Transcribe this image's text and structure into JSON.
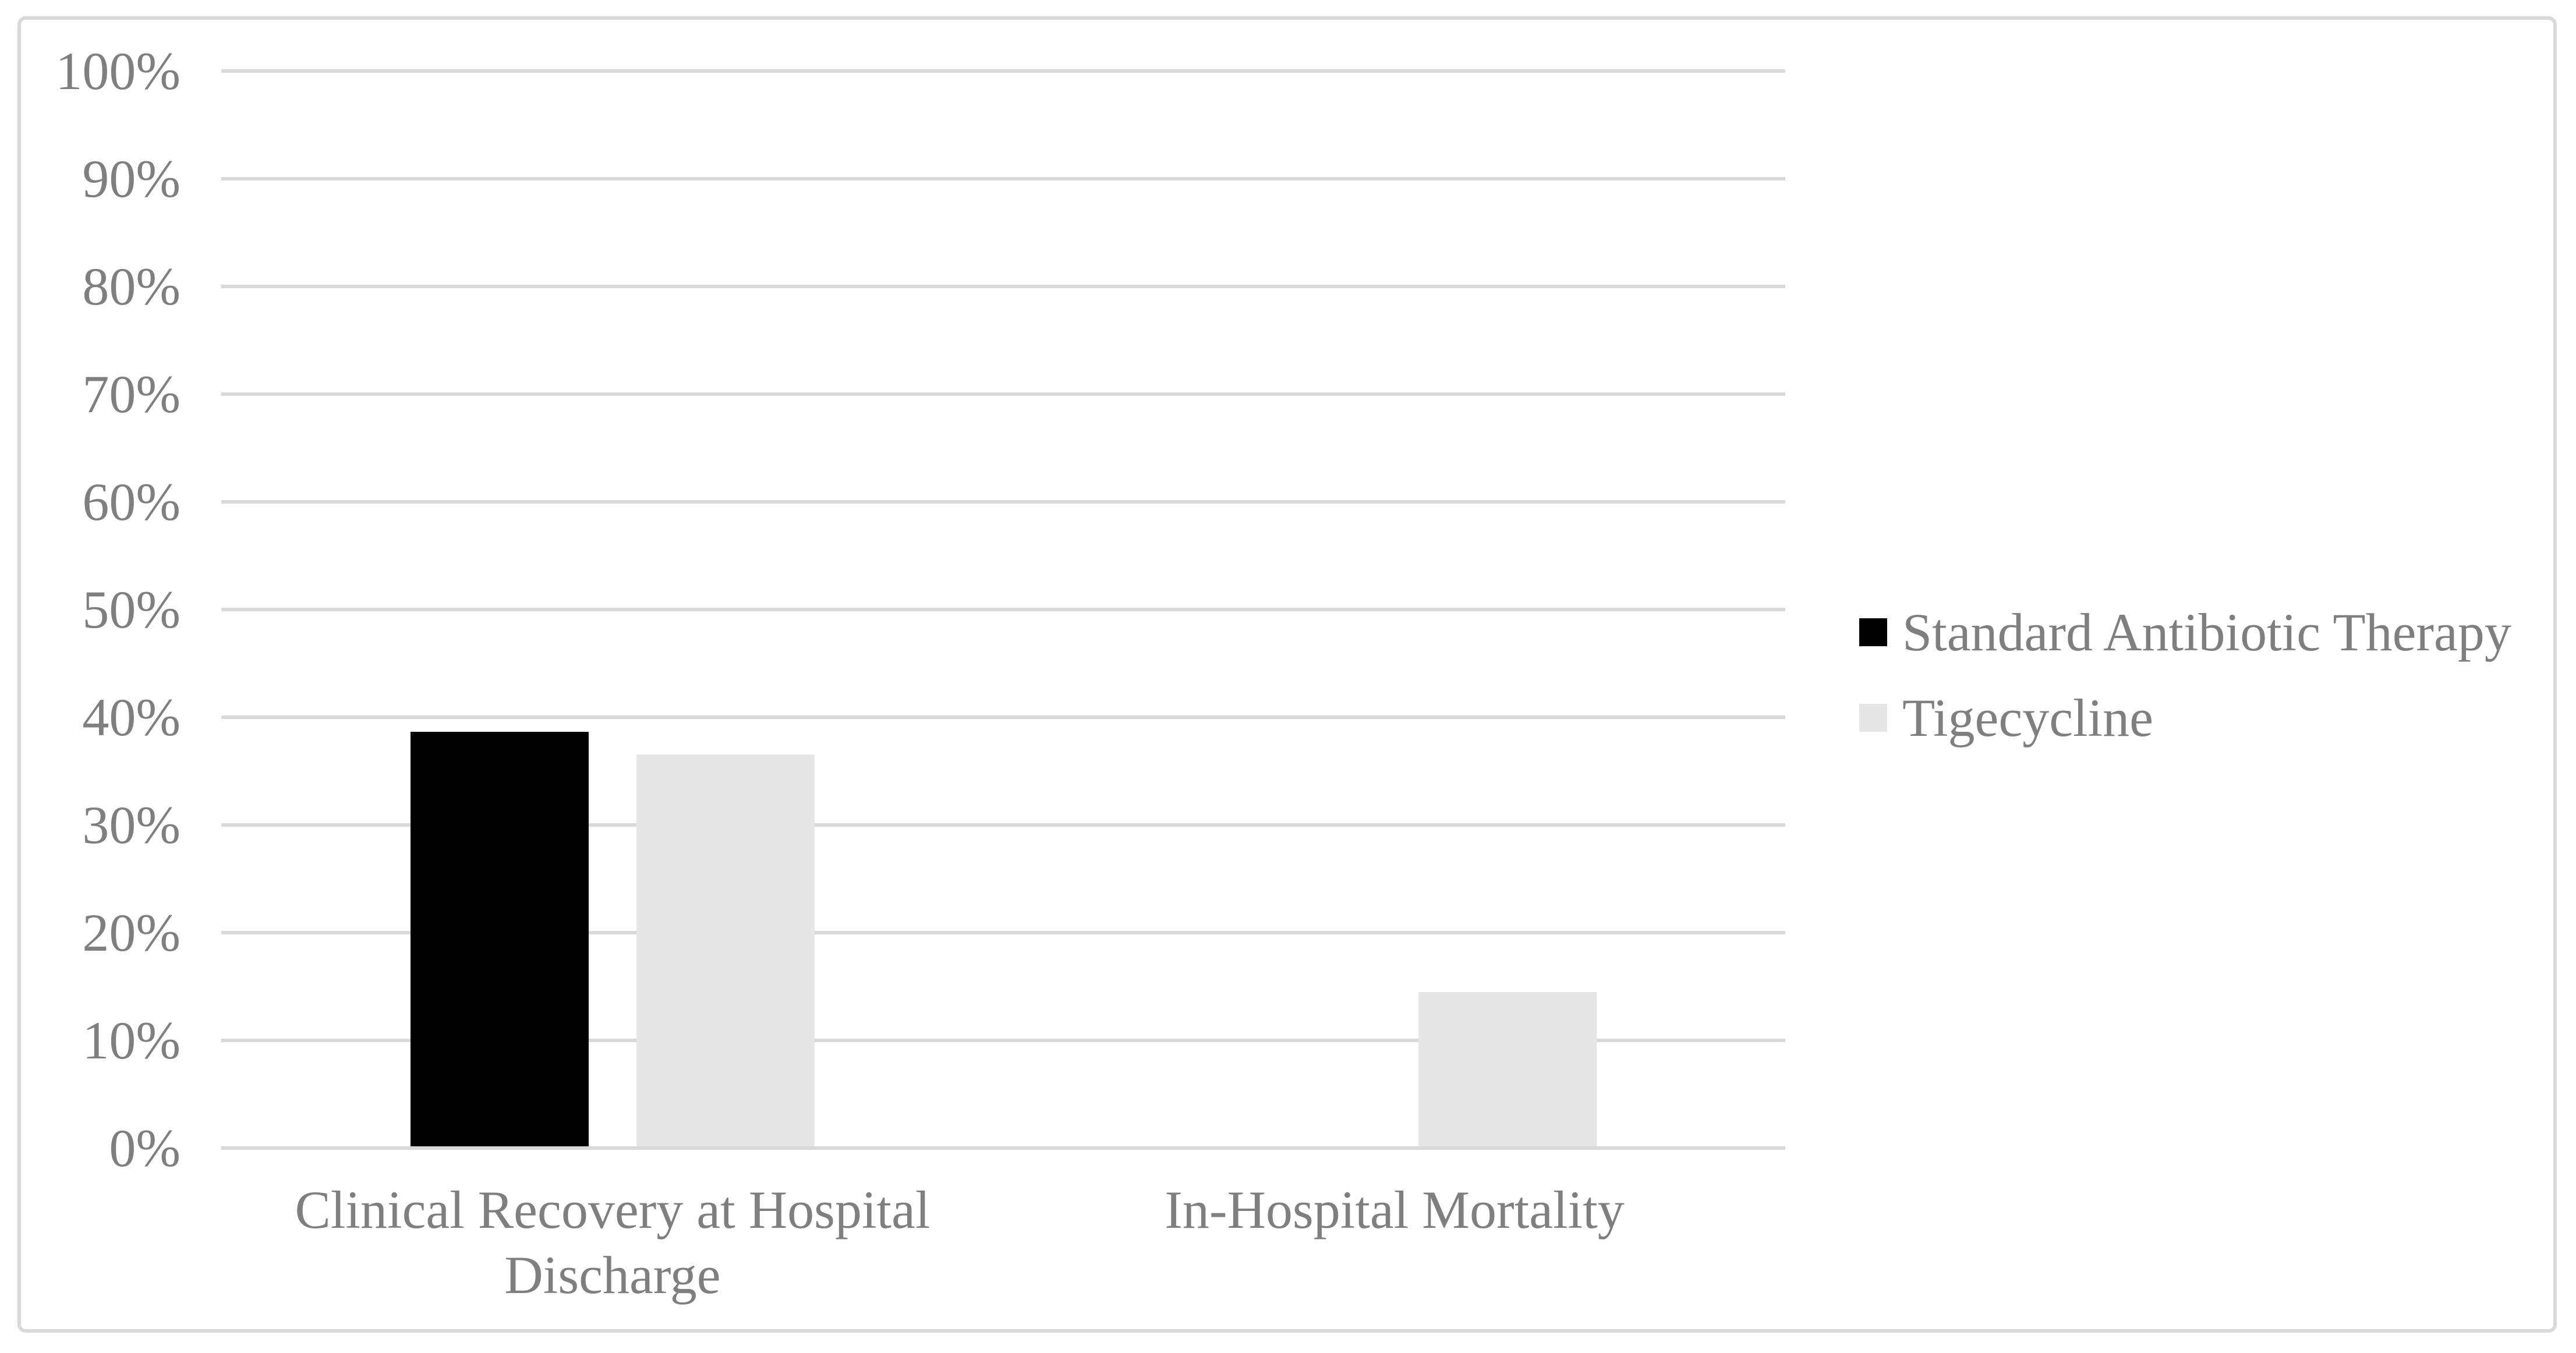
{
  "figure": {
    "background_color": "#ffffff",
    "frame_border_color": "#d9d9d9",
    "gridline_color": "#d9d9d9",
    "text_color": "#7f7f7f"
  },
  "chart_data": {
    "type": "bar",
    "title": "",
    "xlabel": "",
    "ylabel": "",
    "categories": [
      "Clinical Recovery at Hospital Discharge",
      "In-Hospital Mortality"
    ],
    "series": [
      {
        "name": "Standard Antibiotic Therapy",
        "color": "#000000",
        "values_pct": [
          38.5,
          0
        ]
      },
      {
        "name": "Tigecycline",
        "color": "#e6e6e6",
        "values_pct": [
          36.4,
          14.3
        ]
      }
    ],
    "ylim": [
      0,
      100
    ],
    "ytick_step": 10,
    "ytick_labels": [
      "0%",
      "10%",
      "20%",
      "30%",
      "40%",
      "50%",
      "60%",
      "70%",
      "80%",
      "90%",
      "100%"
    ],
    "grid": "horizontal",
    "legend_position": "right"
  }
}
